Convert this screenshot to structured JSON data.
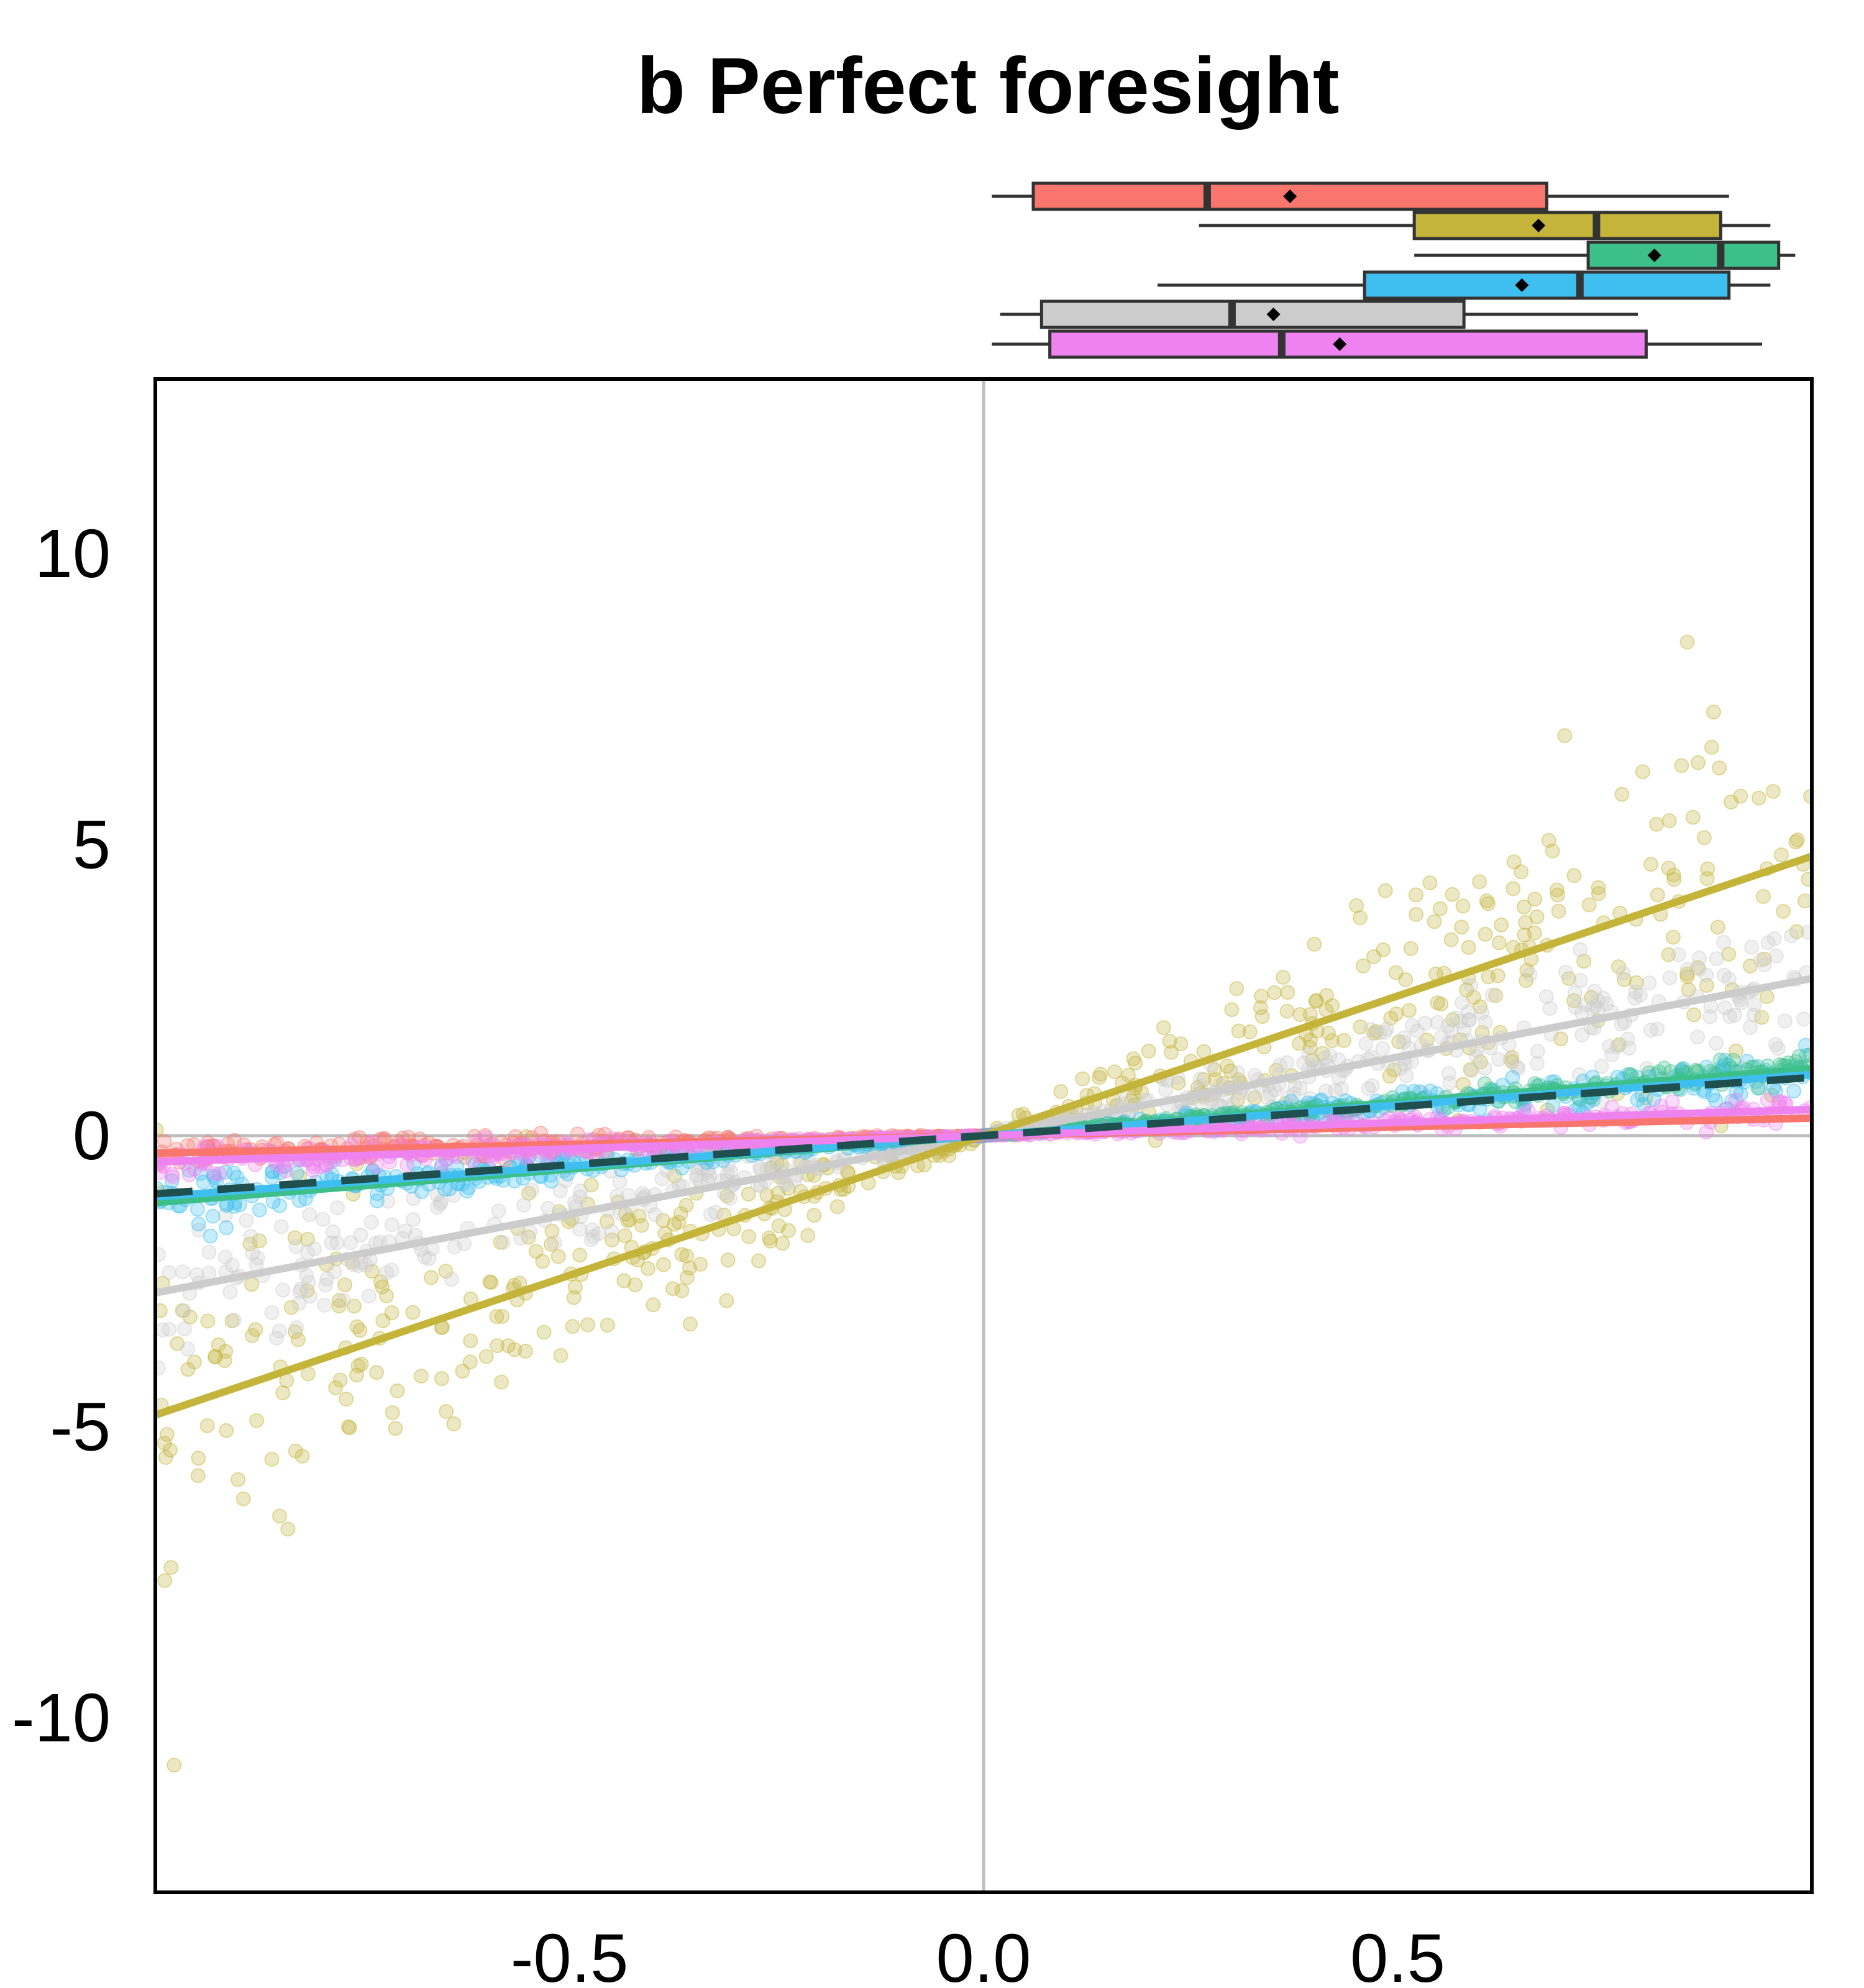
{
  "chart_data": {
    "type": "scatter",
    "title": "b Perfect foresight",
    "xlabel": "",
    "ylabel": "",
    "xlim": [
      -1.0,
      1.0
    ],
    "ylim": [
      -13.0,
      13.0
    ],
    "x_ticks": [
      -0.5,
      0.0,
      0.5
    ],
    "x_tick_labels": [
      "-0.5",
      "0.0",
      "0.5"
    ],
    "y_ticks": [
      -10,
      -5,
      0,
      5,
      10
    ],
    "y_tick_labels": [
      "-10",
      "-5",
      "0",
      "5",
      "10"
    ],
    "reference_lines": {
      "x": 0,
      "y": 0,
      "color": "#bdbdbd"
    },
    "grid": false,
    "legend": "none",
    "series": [
      {
        "color": "#f8766d",
        "slope": 0.3,
        "x_range": [
          -1.0,
          0.0
        ],
        "noise": 0.12,
        "box": {
          "whisker_low": 0.01,
          "q1": 0.06,
          "median": 0.27,
          "mean": 0.37,
          "q3": 0.68,
          "whisker_high": 0.9
        }
      },
      {
        "color": "#c4b43a",
        "slope": 4.8,
        "x_range": [
          -1.0,
          1.0
        ],
        "noise": 1.5,
        "box": {
          "whisker_low": 0.26,
          "q1": 0.52,
          "median": 0.74,
          "mean": 0.67,
          "q3": 0.89,
          "whisker_high": 0.95
        }
      },
      {
        "color": "#3dbf8a",
        "slope": 1.15,
        "x_range": [
          0.0,
          1.0
        ],
        "noise": 0.1,
        "box": {
          "whisker_low": 0.52,
          "q1": 0.73,
          "median": 0.89,
          "mean": 0.81,
          "q3": 0.96,
          "whisker_high": 0.98
        }
      },
      {
        "color": "#3fbff0",
        "slope": 1.05,
        "x_range": [
          -1.0,
          1.0
        ],
        "noise": 0.2,
        "box": {
          "whisker_low": 0.21,
          "q1": 0.46,
          "median": 0.72,
          "mean": 0.65,
          "q3": 0.9,
          "whisker_high": 0.95
        }
      },
      {
        "color": "#cccccc",
        "slope": 2.7,
        "x_range": [
          -1.0,
          1.0
        ],
        "noise": 0.6,
        "box": {
          "whisker_low": 0.02,
          "q1": 0.07,
          "median": 0.3,
          "mean": 0.35,
          "q3": 0.58,
          "whisker_high": 0.79
        }
      },
      {
        "color": "#ee82ee",
        "slope": 0.45,
        "x_range": [
          -1.0,
          1.0
        ],
        "noise": 0.12,
        "box": {
          "whisker_low": 0.01,
          "q1": 0.08,
          "median": 0.36,
          "mean": 0.43,
          "q3": 0.8,
          "whisker_high": 0.94
        }
      }
    ],
    "pooled_fit": {
      "slope": 1.0,
      "color": "#1f4f4f",
      "style": "dashed"
    }
  }
}
